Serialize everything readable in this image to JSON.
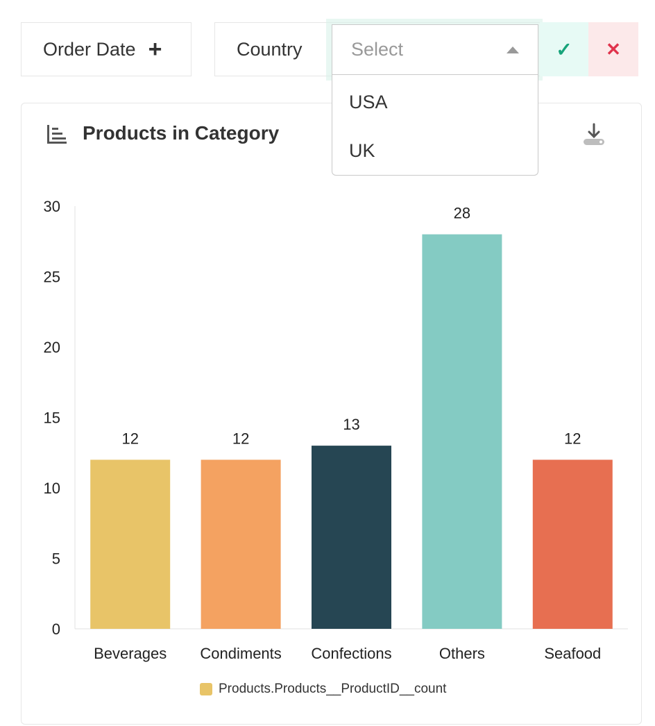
{
  "filters": {
    "order_date_label": "Order Date",
    "order_date_add": "+",
    "country_label": "Country",
    "country_select_placeholder": "Select",
    "confirm_symbol": "✓",
    "cancel_symbol": "✕",
    "country_options": [
      "USA",
      "UK"
    ]
  },
  "card": {
    "title": "Products in Category"
  },
  "colors": {
    "accent_confirm": "#17a37a",
    "accent_cancel": "#e0334c"
  },
  "chart_data": {
    "type": "bar",
    "title": "Products in Category",
    "categories": [
      "Beverages",
      "Condiments",
      "Confections",
      "Others",
      "Seafood"
    ],
    "values": [
      12,
      12,
      13,
      28,
      12
    ],
    "bar_colors": [
      "#e8c468",
      "#f4a261",
      "#264653",
      "#84cbc3",
      "#e76f51"
    ],
    "ylim": [
      0,
      30
    ],
    "yticks": [
      0,
      5,
      10,
      15,
      20,
      25,
      30
    ],
    "series": [
      {
        "name": "Products.Products__ProductID__count",
        "values": [
          12,
          12,
          13,
          28,
          12
        ]
      }
    ],
    "legend_position": "bottom",
    "grid": false
  }
}
